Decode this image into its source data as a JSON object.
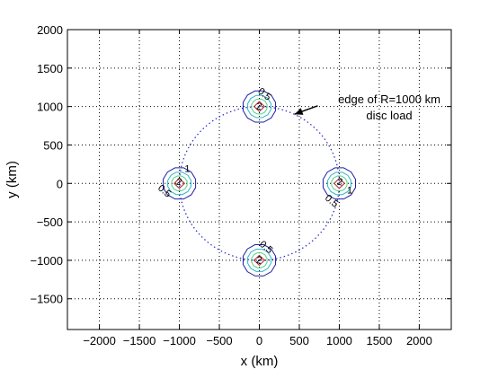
{
  "chart_data": {
    "type": "contour",
    "xlabel": "x  (km)",
    "ylabel": "y  (km)",
    "xlim": [
      -2400,
      2400
    ],
    "ylim": [
      -1900,
      2000
    ],
    "grid": true,
    "x_ticks": [
      -2000,
      -1500,
      -1000,
      -500,
      0,
      500,
      1000,
      1500,
      2000
    ],
    "y_ticks": [
      -1500,
      -1000,
      -500,
      0,
      500,
      1000,
      1500,
      2000
    ],
    "x_tick_labels": [
      "−2000",
      "−1500",
      "−1000",
      "−500",
      "0",
      "500",
      "1000",
      "1500",
      "2000"
    ],
    "y_tick_labels": [
      "−1500",
      "−1000",
      "−500",
      "0",
      "500",
      "1000",
      "1500",
      "2000"
    ],
    "disc_load": {
      "center": [
        0,
        0
      ],
      "radius": 1000,
      "style": "dotted",
      "color": "#3333cc"
    },
    "contour_levels": [
      0.5,
      1,
      1.5,
      2
    ],
    "contour_colors": {
      "0.5": "#1f1fa8",
      "1": "#2db7c9",
      "1.5": "#55d08a",
      "2": "#b22222"
    },
    "peaks": [
      {
        "center": [
          0,
          1000
        ],
        "radii": [
          210,
          150,
          100,
          65
        ],
        "labels": [
          {
            "text": "0.5",
            "at": [
              40,
              1130
            ],
            "rotate": 40
          },
          {
            "text": "2",
            "at": [
              -10,
              960
            ],
            "rotate": 10
          }
        ]
      },
      {
        "center": [
          0,
          -1000
        ],
        "radii": [
          210,
          150,
          100,
          65
        ],
        "labels": [
          {
            "text": "0.5",
            "at": [
              60,
              -860
            ],
            "rotate": 40
          },
          {
            "text": "2",
            "at": [
              -10,
              -1040
            ],
            "rotate": 10
          }
        ]
      },
      {
        "center": [
          -1000,
          0
        ],
        "radii": [
          210,
          150,
          100,
          65
        ],
        "labels": [
          {
            "text": "1",
            "at": [
              -900,
              150
            ],
            "rotate": 0
          },
          {
            "text": "0.5",
            "at": [
              -1210,
              -130
            ],
            "rotate": 40
          },
          {
            "text": "2",
            "at": [
              -1010,
              -20
            ],
            "rotate": 10
          }
        ]
      },
      {
        "center": [
          1000,
          0
        ],
        "radii": [
          210,
          150,
          100,
          65
        ],
        "labels": [
          {
            "text": "1",
            "at": [
              1130,
              -130
            ],
            "rotate": 0
          },
          {
            "text": "0.5",
            "at": [
              880,
              -260
            ],
            "rotate": 40
          },
          {
            "text": "2",
            "at": [
              1000,
              -20
            ],
            "rotate": 10
          }
        ]
      }
    ],
    "annotation": {
      "line1": "edge of R=1000 km",
      "line2": "disc load",
      "arrow_tip": [
        440,
        900
      ],
      "arrow_tail": [
        730,
        1010
      ]
    }
  }
}
